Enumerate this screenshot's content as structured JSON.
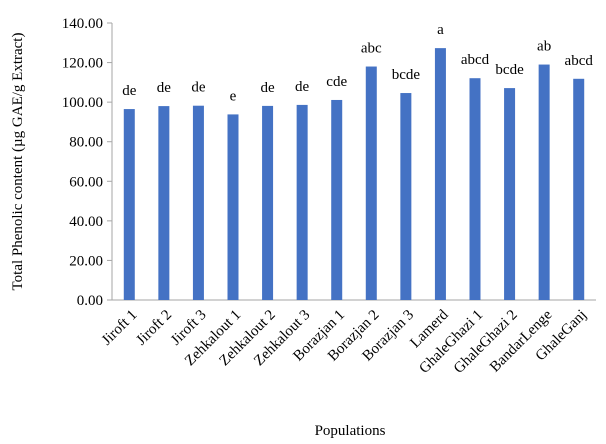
{
  "chart_data": {
    "type": "bar",
    "categories": [
      "Jiroft 1",
      "Jiroft 2",
      "Jiroft 3",
      "Zehkalout 1",
      "Zehkalout 2",
      "Zehkalout 3",
      "Borazjan 1",
      "Borazjan 2",
      "Borazjan 3",
      "Lamerd",
      "GhaleGhazi 1",
      "GhaleGhazi 2",
      "BandarLenge",
      "GhaleGanj"
    ],
    "values": [
      96.5,
      98.0,
      98.2,
      93.8,
      98.1,
      98.6,
      101.1,
      118.0,
      104.6,
      127.3,
      112.1,
      107.1,
      119.0,
      111.8
    ],
    "data_labels": [
      "de",
      "de",
      "de",
      "e",
      "de",
      "de",
      "cde",
      "abc",
      "bcde",
      "a",
      "abcd",
      "bcde",
      "ab",
      "abcd"
    ],
    "xlabel": "Populations",
    "ylabel": "Total Phenolic content (µg GAE/g Extract)",
    "ylim": [
      0,
      140
    ],
    "yticks": [
      "0.00",
      "20.00",
      "40.00",
      "60.00",
      "80.00",
      "100.00",
      "120.00",
      "140.00"
    ],
    "bar_color": "#4472c4",
    "grid": false,
    "legend": "none"
  }
}
